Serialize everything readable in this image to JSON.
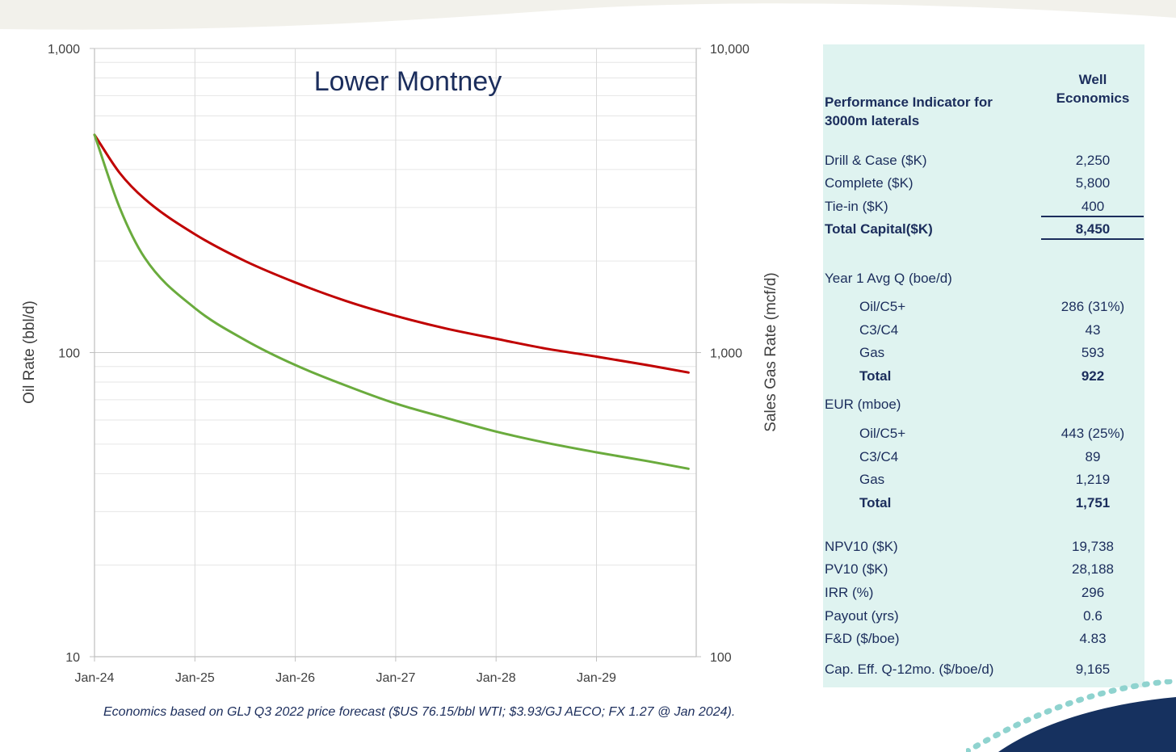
{
  "chart_data": {
    "type": "line",
    "title": "Lower Montney",
    "x_ticks": [
      "Jan-24",
      "Jan-25",
      "Jan-26",
      "Jan-27",
      "Jan-28",
      "Jan-29"
    ],
    "xlim": [
      "Jan-24",
      "Dec-29"
    ],
    "y_left": {
      "label": "Oil Rate (bbl/d)",
      "scale": "log",
      "range": [
        10,
        1000
      ],
      "ticks": [
        "10",
        "100",
        "1,000"
      ]
    },
    "y_right": {
      "label": "Sales Gas Rate (mcf/d)",
      "scale": "log",
      "range": [
        100,
        10000
      ],
      "ticks": [
        "100",
        "1,000",
        "10,000"
      ]
    },
    "grid": true,
    "series": [
      {
        "axis": "right",
        "color": "#c00000",
        "points": [
          [
            "Jan-24",
            5200
          ],
          [
            "Apr-24",
            3900
          ],
          [
            "Jul-24",
            3200
          ],
          [
            "Jan-25",
            2450
          ],
          [
            "Jul-25",
            2000
          ],
          [
            "Jan-26",
            1700
          ],
          [
            "Jul-26",
            1480
          ],
          [
            "Jan-27",
            1320
          ],
          [
            "Jul-27",
            1200
          ],
          [
            "Jan-28",
            1110
          ],
          [
            "Jul-28",
            1030
          ],
          [
            "Jan-29",
            970
          ],
          [
            "Jul-29",
            910
          ],
          [
            "Dec-29",
            860
          ]
        ]
      },
      {
        "axis": "left",
        "color": "#6aab3d",
        "points": [
          [
            "Jan-24",
            520
          ],
          [
            "Apr-24",
            300
          ],
          [
            "Jul-24",
            205
          ],
          [
            "Jan-25",
            140
          ],
          [
            "Jul-25",
            110
          ],
          [
            "Jan-26",
            91
          ],
          [
            "Jul-26",
            78
          ],
          [
            "Jan-27",
            68
          ],
          [
            "Jul-27",
            61
          ],
          [
            "Jan-28",
            55
          ],
          [
            "Jul-28",
            50.5
          ],
          [
            "Jan-29",
            47
          ],
          [
            "Jul-29",
            44
          ],
          [
            "Dec-29",
            41.5
          ]
        ]
      }
    ]
  },
  "footnote": "Economics based on GLJ Q3 2022 price forecast ($US 76.15/bbl WTI; $3.93/GJ AECO; FX 1.27 @ Jan 2024).",
  "panel": {
    "header_label": "Performance Indicator for 3000m laterals",
    "header_col": "Well Economics",
    "background": "#dff3f0",
    "rows": [
      {
        "label": "Drill & Case ($K)",
        "value": "2,250"
      },
      {
        "label": "Complete ($K)",
        "value": "5,800"
      },
      {
        "label": "Tie-in ($K)",
        "value": "400"
      },
      {
        "label": "Total Capital($K)",
        "value": "8,450"
      },
      {
        "label": "Year 1 Avg Q (boe/d)",
        "value": ""
      },
      {
        "label": "Oil/C5+",
        "value": "286 (31%)"
      },
      {
        "label": "C3/C4",
        "value": "43"
      },
      {
        "label": "Gas",
        "value": "593"
      },
      {
        "label": "Total",
        "value": "922"
      },
      {
        "label": "EUR (mboe)",
        "value": ""
      },
      {
        "label": "Oil/C5+",
        "value": "443 (25%)"
      },
      {
        "label": "C3/C4",
        "value": "89"
      },
      {
        "label": "Gas",
        "value": "1,219"
      },
      {
        "label": "Total",
        "value": "1,751"
      },
      {
        "label": "NPV10 ($K)",
        "value": "19,738"
      },
      {
        "label": "PV10 ($K)",
        "value": "28,188"
      },
      {
        "label": "IRR (%)",
        "value": "296"
      },
      {
        "label": "Payout (yrs)",
        "value": "0.6"
      },
      {
        "label": "F&D ($/boe)",
        "value": "4.83"
      },
      {
        "label": "Cap. Eff. Q-12mo. ($/boe/d)",
        "value": "9,165"
      }
    ]
  }
}
